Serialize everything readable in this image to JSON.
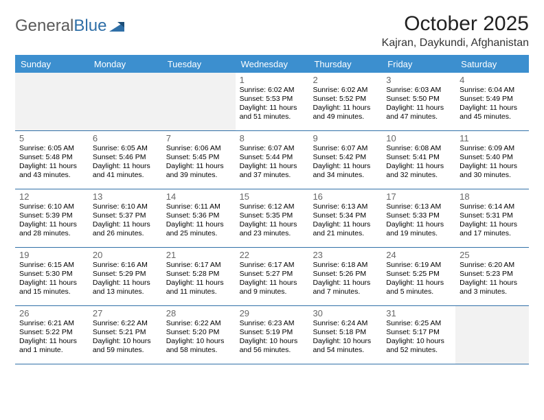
{
  "brand": {
    "name1": "General",
    "name2": "Blue"
  },
  "title": "October 2025",
  "location": "Kajran, Daykundi, Afghanistan",
  "colors": {
    "header_bg": "#3c8fcf",
    "header_text": "#ffffff",
    "rule": "#2f6fa7",
    "blank_bg": "#f2f2f2",
    "daynum": "#666666",
    "body_text": "#000000",
    "logo_gray": "#5a5a5a",
    "logo_blue": "#2f6fa7"
  },
  "day_names": [
    "Sunday",
    "Monday",
    "Tuesday",
    "Wednesday",
    "Thursday",
    "Friday",
    "Saturday"
  ],
  "weeks": [
    [
      {
        "blank": true
      },
      {
        "blank": true
      },
      {
        "blank": true
      },
      {
        "day": "1",
        "sunrise": "Sunrise: 6:02 AM",
        "sunset": "Sunset: 5:53 PM",
        "daylight": "Daylight: 11 hours and 51 minutes."
      },
      {
        "day": "2",
        "sunrise": "Sunrise: 6:02 AM",
        "sunset": "Sunset: 5:52 PM",
        "daylight": "Daylight: 11 hours and 49 minutes."
      },
      {
        "day": "3",
        "sunrise": "Sunrise: 6:03 AM",
        "sunset": "Sunset: 5:50 PM",
        "daylight": "Daylight: 11 hours and 47 minutes."
      },
      {
        "day": "4",
        "sunrise": "Sunrise: 6:04 AM",
        "sunset": "Sunset: 5:49 PM",
        "daylight": "Daylight: 11 hours and 45 minutes."
      }
    ],
    [
      {
        "day": "5",
        "sunrise": "Sunrise: 6:05 AM",
        "sunset": "Sunset: 5:48 PM",
        "daylight": "Daylight: 11 hours and 43 minutes."
      },
      {
        "day": "6",
        "sunrise": "Sunrise: 6:05 AM",
        "sunset": "Sunset: 5:46 PM",
        "daylight": "Daylight: 11 hours and 41 minutes."
      },
      {
        "day": "7",
        "sunrise": "Sunrise: 6:06 AM",
        "sunset": "Sunset: 5:45 PM",
        "daylight": "Daylight: 11 hours and 39 minutes."
      },
      {
        "day": "8",
        "sunrise": "Sunrise: 6:07 AM",
        "sunset": "Sunset: 5:44 PM",
        "daylight": "Daylight: 11 hours and 37 minutes."
      },
      {
        "day": "9",
        "sunrise": "Sunrise: 6:07 AM",
        "sunset": "Sunset: 5:42 PM",
        "daylight": "Daylight: 11 hours and 34 minutes."
      },
      {
        "day": "10",
        "sunrise": "Sunrise: 6:08 AM",
        "sunset": "Sunset: 5:41 PM",
        "daylight": "Daylight: 11 hours and 32 minutes."
      },
      {
        "day": "11",
        "sunrise": "Sunrise: 6:09 AM",
        "sunset": "Sunset: 5:40 PM",
        "daylight": "Daylight: 11 hours and 30 minutes."
      }
    ],
    [
      {
        "day": "12",
        "sunrise": "Sunrise: 6:10 AM",
        "sunset": "Sunset: 5:39 PM",
        "daylight": "Daylight: 11 hours and 28 minutes."
      },
      {
        "day": "13",
        "sunrise": "Sunrise: 6:10 AM",
        "sunset": "Sunset: 5:37 PM",
        "daylight": "Daylight: 11 hours and 26 minutes."
      },
      {
        "day": "14",
        "sunrise": "Sunrise: 6:11 AM",
        "sunset": "Sunset: 5:36 PM",
        "daylight": "Daylight: 11 hours and 25 minutes."
      },
      {
        "day": "15",
        "sunrise": "Sunrise: 6:12 AM",
        "sunset": "Sunset: 5:35 PM",
        "daylight": "Daylight: 11 hours and 23 minutes."
      },
      {
        "day": "16",
        "sunrise": "Sunrise: 6:13 AM",
        "sunset": "Sunset: 5:34 PM",
        "daylight": "Daylight: 11 hours and 21 minutes."
      },
      {
        "day": "17",
        "sunrise": "Sunrise: 6:13 AM",
        "sunset": "Sunset: 5:33 PM",
        "daylight": "Daylight: 11 hours and 19 minutes."
      },
      {
        "day": "18",
        "sunrise": "Sunrise: 6:14 AM",
        "sunset": "Sunset: 5:31 PM",
        "daylight": "Daylight: 11 hours and 17 minutes."
      }
    ],
    [
      {
        "day": "19",
        "sunrise": "Sunrise: 6:15 AM",
        "sunset": "Sunset: 5:30 PM",
        "daylight": "Daylight: 11 hours and 15 minutes."
      },
      {
        "day": "20",
        "sunrise": "Sunrise: 6:16 AM",
        "sunset": "Sunset: 5:29 PM",
        "daylight": "Daylight: 11 hours and 13 minutes."
      },
      {
        "day": "21",
        "sunrise": "Sunrise: 6:17 AM",
        "sunset": "Sunset: 5:28 PM",
        "daylight": "Daylight: 11 hours and 11 minutes."
      },
      {
        "day": "22",
        "sunrise": "Sunrise: 6:17 AM",
        "sunset": "Sunset: 5:27 PM",
        "daylight": "Daylight: 11 hours and 9 minutes."
      },
      {
        "day": "23",
        "sunrise": "Sunrise: 6:18 AM",
        "sunset": "Sunset: 5:26 PM",
        "daylight": "Daylight: 11 hours and 7 minutes."
      },
      {
        "day": "24",
        "sunrise": "Sunrise: 6:19 AM",
        "sunset": "Sunset: 5:25 PM",
        "daylight": "Daylight: 11 hours and 5 minutes."
      },
      {
        "day": "25",
        "sunrise": "Sunrise: 6:20 AM",
        "sunset": "Sunset: 5:23 PM",
        "daylight": "Daylight: 11 hours and 3 minutes."
      }
    ],
    [
      {
        "day": "26",
        "sunrise": "Sunrise: 6:21 AM",
        "sunset": "Sunset: 5:22 PM",
        "daylight": "Daylight: 11 hours and 1 minute."
      },
      {
        "day": "27",
        "sunrise": "Sunrise: 6:22 AM",
        "sunset": "Sunset: 5:21 PM",
        "daylight": "Daylight: 10 hours and 59 minutes."
      },
      {
        "day": "28",
        "sunrise": "Sunrise: 6:22 AM",
        "sunset": "Sunset: 5:20 PM",
        "daylight": "Daylight: 10 hours and 58 minutes."
      },
      {
        "day": "29",
        "sunrise": "Sunrise: 6:23 AM",
        "sunset": "Sunset: 5:19 PM",
        "daylight": "Daylight: 10 hours and 56 minutes."
      },
      {
        "day": "30",
        "sunrise": "Sunrise: 6:24 AM",
        "sunset": "Sunset: 5:18 PM",
        "daylight": "Daylight: 10 hours and 54 minutes."
      },
      {
        "day": "31",
        "sunrise": "Sunrise: 6:25 AM",
        "sunset": "Sunset: 5:17 PM",
        "daylight": "Daylight: 10 hours and 52 minutes."
      },
      {
        "blank": true
      }
    ]
  ]
}
